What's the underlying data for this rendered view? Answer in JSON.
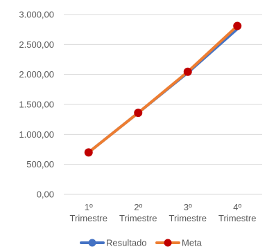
{
  "chart_data": {
    "type": "line",
    "categories": [
      [
        "1º",
        "Trimestre"
      ],
      [
        "2º",
        "Trimestre"
      ],
      [
        "3º",
        "Trimestre"
      ],
      [
        "4º",
        "Trimestre"
      ]
    ],
    "yticks": [
      "0,00",
      "500,00",
      "1.000,00",
      "1.500,00",
      "2.000,00",
      "2.500,00",
      "3.000,00"
    ],
    "ylim": [
      0,
      3000
    ],
    "ytick_step": 500,
    "grid": true,
    "legend_position": "bottom",
    "series": [
      {
        "name": "Resultado",
        "values": [
          700,
          1360,
          2030,
          2760
        ],
        "color": "#4472C4",
        "marker": false
      },
      {
        "name": "Meta",
        "values": [
          700,
          1360,
          2045,
          2810
        ],
        "color": "#ED7D31",
        "marker": true,
        "marker_color": "#C00000"
      }
    ]
  }
}
